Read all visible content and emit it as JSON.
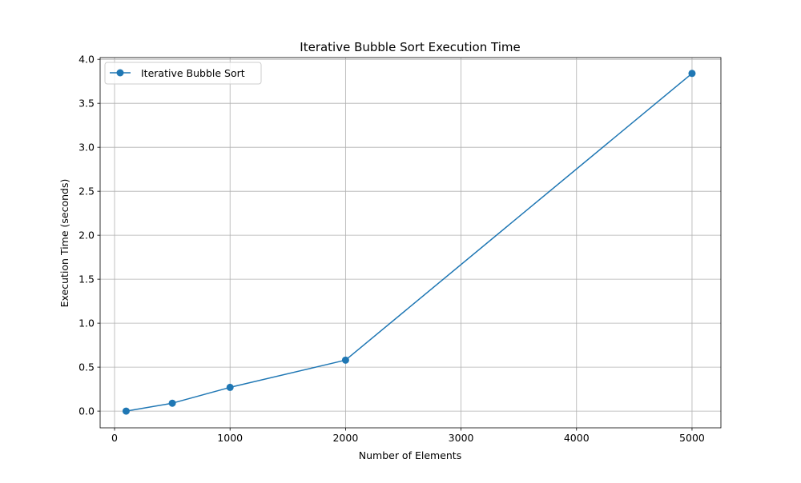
{
  "chart_data": {
    "type": "line",
    "title": "Iterative Bubble Sort Execution Time",
    "xlabel": "Number of Elements",
    "ylabel": "Execution Time (seconds)",
    "xlim": [
      -125,
      5250
    ],
    "ylim": [
      -0.19,
      4.02
    ],
    "xticks": [
      0,
      1000,
      2000,
      3000,
      4000,
      5000
    ],
    "yticks": [
      0.0,
      0.5,
      1.0,
      1.5,
      2.0,
      2.5,
      3.0,
      3.5,
      4.0
    ],
    "xtick_labels": [
      "0",
      "1000",
      "2000",
      "3000",
      "4000",
      "5000"
    ],
    "ytick_labels": [
      "0.0",
      "0.5",
      "1.0",
      "1.5",
      "2.0",
      "2.5",
      "3.0",
      "3.5",
      "4.0"
    ],
    "grid": true,
    "legend_position": "upper-left",
    "series": [
      {
        "name": "Iterative Bubble Sort",
        "color": "#1f77b4",
        "marker": "circle",
        "x": [
          100,
          500,
          1000,
          2000,
          5000
        ],
        "y": [
          0.0,
          0.09,
          0.27,
          0.58,
          3.84
        ]
      }
    ]
  }
}
